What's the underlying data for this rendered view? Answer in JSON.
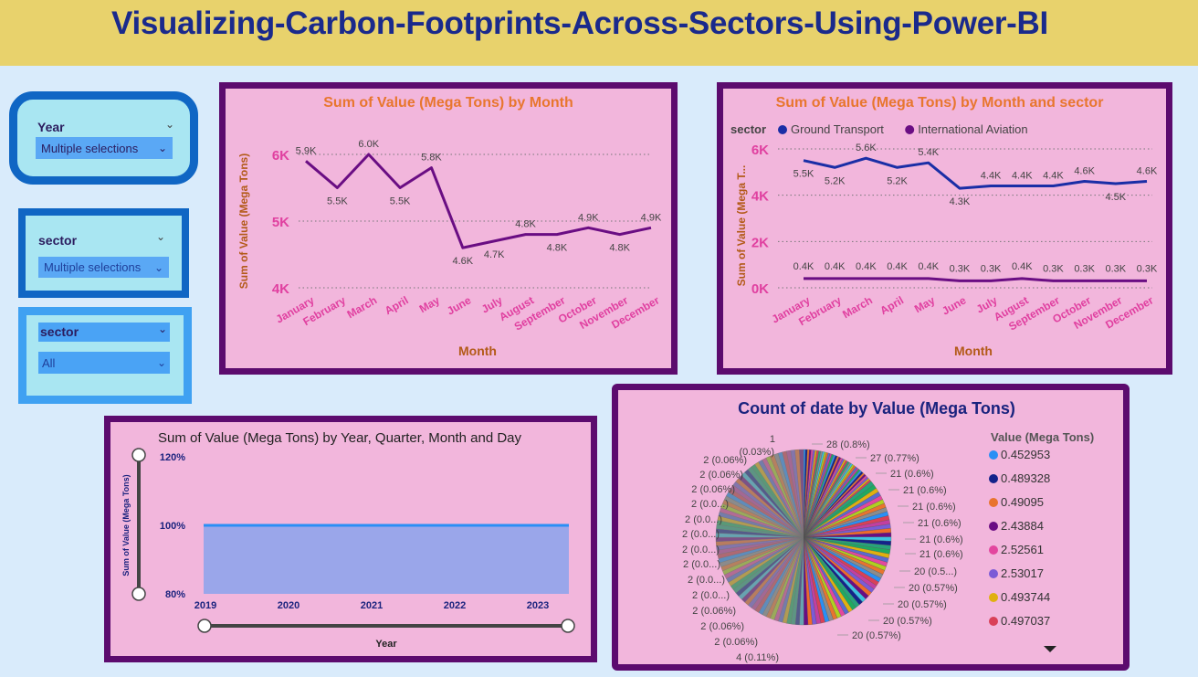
{
  "header": {
    "title": "Visualizing-Carbon-Footprints-Across-Sectors-Using-Power-BI"
  },
  "slicers": [
    {
      "title": "Year",
      "value": "Multiple selections"
    },
    {
      "title": "sector",
      "value": "Multiple selections"
    },
    {
      "title": "sector",
      "value": "All"
    }
  ],
  "colors": {
    "purple": "#6a0d83",
    "navy": "#1a2ea6",
    "accent": "#e8d26c",
    "panel": "#f2b6dc",
    "pink_tick": "#e040a0"
  },
  "chart_data": [
    {
      "type": "line",
      "title": "Sum of Value (Mega Tons) by Month",
      "xlabel": "Month",
      "ylabel": "Sum of Value (Mega Tons)",
      "categories": [
        "January",
        "February",
        "March",
        "April",
        "May",
        "June",
        "July",
        "August",
        "September",
        "October",
        "November",
        "December"
      ],
      "values": [
        5.9,
        5.5,
        6.0,
        5.5,
        5.8,
        4.6,
        4.7,
        4.8,
        4.8,
        4.9,
        4.8,
        4.9
      ],
      "labels": [
        "5.9K",
        "5.5K",
        "6.0K",
        "5.5K",
        "5.8K",
        "4.6K",
        "4.7K",
        "4.8K",
        "4.8K",
        "4.9K",
        "4.8K",
        "4.9K"
      ],
      "yticks": [
        "4K",
        "5K",
        "6K"
      ],
      "ylim": [
        4,
        6
      ],
      "grid": true
    },
    {
      "type": "line",
      "title": "Sum of Value (Mega Tons) by Month and sector",
      "xlabel": "Month",
      "ylabel": "Sum of Value (Mega T...",
      "legend_title": "sector",
      "categories": [
        "January",
        "February",
        "March",
        "April",
        "May",
        "June",
        "July",
        "August",
        "September",
        "October",
        "November",
        "December"
      ],
      "series": [
        {
          "name": "Ground Transport",
          "color": "#1a2ea6",
          "values": [
            5.5,
            5.2,
            5.6,
            5.2,
            5.4,
            4.3,
            4.4,
            4.4,
            4.4,
            4.6,
            4.5,
            4.6
          ],
          "labels": [
            "5.5K",
            "5.2K",
            "5.6K",
            "5.2K",
            "5.4K",
            "4.3K",
            "4.4K",
            "4.4K",
            "4.4K",
            "4.6K",
            "4.5K",
            "4.6K"
          ]
        },
        {
          "name": "International Aviation",
          "color": "#6a0d83",
          "values": [
            0.4,
            0.4,
            0.4,
            0.4,
            0.4,
            0.3,
            0.3,
            0.4,
            0.3,
            0.3,
            0.3,
            0.3
          ],
          "labels": [
            "0.4K",
            "0.4K",
            "0.4K",
            "0.4K",
            "0.4K",
            "0.3K",
            "0.3K",
            "0.4K",
            "0.3K",
            "0.3K",
            "0.3K",
            "0.3K"
          ]
        }
      ],
      "yticks": [
        "0K",
        "2K",
        "4K",
        "6K"
      ],
      "ylim": [
        0,
        6
      ],
      "grid": true
    },
    {
      "type": "area",
      "title": "Sum of Value (Mega Tons) by Year, Quarter, Month and Day",
      "xlabel": "Year",
      "ylabel": "Sum of Value (Mega Tons)",
      "categories": [
        "2019",
        "2020",
        "2021",
        "2022",
        "2023"
      ],
      "values": [
        100,
        100,
        100,
        100,
        100
      ],
      "yticks": [
        "80%",
        "100%",
        "120%"
      ],
      "ylim": [
        80,
        120
      ]
    },
    {
      "type": "pie",
      "title": "Count of date by Value (Mega Tons)",
      "legend_title": "Value (Mega Tons)",
      "legend": [
        {
          "name": "0.452953",
          "color": "#2a8ff5"
        },
        {
          "name": "0.489328",
          "color": "#13238a"
        },
        {
          "name": "0.49095",
          "color": "#e8742e"
        },
        {
          "name": "2.43884",
          "color": "#6a0d83"
        },
        {
          "name": "2.52561",
          "color": "#e3479f"
        },
        {
          "name": "2.53017",
          "color": "#7b5bd6"
        },
        {
          "name": "0.493744",
          "color": "#e0b010"
        },
        {
          "name": "0.497037",
          "color": "#d94058"
        }
      ],
      "labels_right": [
        "28 (0.8%)",
        "27 (0.77%)",
        "21 (0.6%)",
        "21 (0.6%)",
        "21 (0.6%)",
        "21 (0.6%)",
        "21 (0.6%)",
        "21 (0.6%)",
        "20 (0.5...)",
        "20 (0.57%)",
        "20 (0.57%)",
        "20 (0.57%)",
        "20 (0.57%)"
      ],
      "labels_left": [
        "1",
        "(0.03%)",
        "2 (0.06%)",
        "2 (0.06%)",
        "2 (0.06%)",
        "2 (0.0...)",
        "2 (0.0...)",
        "2 (0.0...)",
        "2 (0.0...)",
        "2 (0.0...)",
        "2 (0.0...)",
        "2 (0.0...)",
        "2 (0.06%)",
        "2 (0.06%)",
        "2 (0.06%)",
        "4 (0.11%)"
      ]
    }
  ]
}
